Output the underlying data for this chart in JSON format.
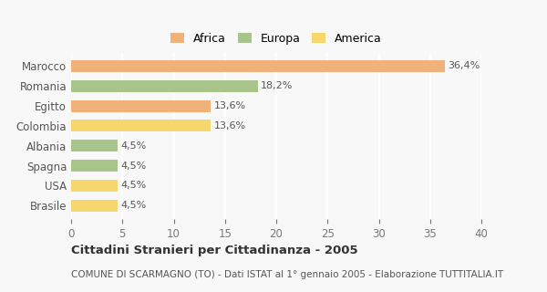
{
  "categories": [
    "Brasile",
    "USA",
    "Spagna",
    "Albania",
    "Colombia",
    "Egitto",
    "Romania",
    "Marocco"
  ],
  "values": [
    4.5,
    4.5,
    4.5,
    4.5,
    13.6,
    13.6,
    18.2,
    36.4
  ],
  "labels": [
    "4,5%",
    "4,5%",
    "4,5%",
    "4,5%",
    "13,6%",
    "13,6%",
    "18,2%",
    "36,4%"
  ],
  "colors": [
    "#f5d76e",
    "#f5d76e",
    "#a8c48a",
    "#a8c48a",
    "#f5d76e",
    "#f0b27a",
    "#a8c48a",
    "#f0b27a"
  ],
  "legend_items": [
    {
      "label": "Africa",
      "color": "#f0b27a"
    },
    {
      "label": "Europa",
      "color": "#a8c48a"
    },
    {
      "label": "America",
      "color": "#f5d76e"
    }
  ],
  "xlim": [
    0,
    40
  ],
  "xticks": [
    0,
    5,
    10,
    15,
    20,
    25,
    30,
    35,
    40
  ],
  "title_bold": "Cittadini Stranieri per Cittadinanza - 2005",
  "subtitle": "COMUNE DI SCARMAGNO (TO) - Dati ISTAT al 1° gennaio 2005 - Elaborazione TUTTITALIA.IT",
  "background_color": "#f8f8f8",
  "bar_height": 0.6,
  "label_fontsize": 8,
  "tick_label_fontsize": 8.5,
  "grid_color": "#ffffff",
  "title_fontsize": 9.5,
  "subtitle_fontsize": 7.5
}
